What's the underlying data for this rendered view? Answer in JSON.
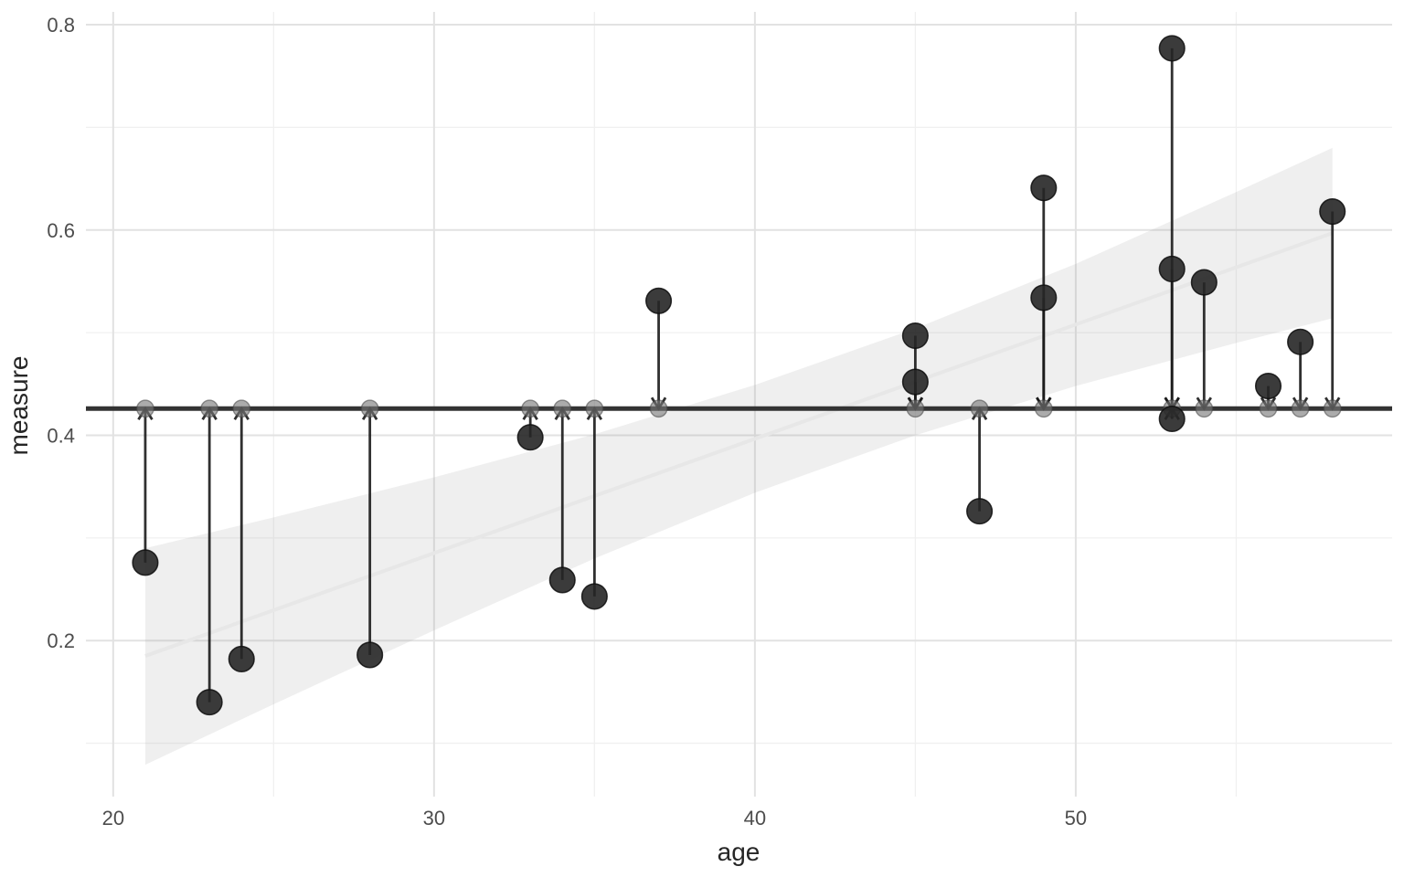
{
  "chart_data": {
    "type": "scatter",
    "title": "",
    "xlabel": "age",
    "ylabel": "measure",
    "legend": "none",
    "grid": "on",
    "xlim": [
      19.15,
      59.86
    ],
    "ylim": [
      0.048,
      0.8125
    ],
    "x_ticks": [
      20,
      30,
      40,
      50
    ],
    "x_tick_labels": [
      "20",
      "30",
      "40",
      "50"
    ],
    "x_minor_ticks": [
      25,
      35,
      45,
      55
    ],
    "y_ticks": [
      0.2,
      0.4,
      0.6,
      0.8
    ],
    "y_tick_labels": [
      "0.2",
      "0.4",
      "0.6",
      "0.8"
    ],
    "y_minor_ticks": [
      0.1,
      0.3,
      0.5,
      0.7
    ],
    "null_model_mean": 0.426,
    "points": [
      {
        "age": 21,
        "measure": 0.276
      },
      {
        "age": 23,
        "measure": 0.14
      },
      {
        "age": 24,
        "measure": 0.182
      },
      {
        "age": 28,
        "measure": 0.186
      },
      {
        "age": 33,
        "measure": 0.398
      },
      {
        "age": 34,
        "measure": 0.259
      },
      {
        "age": 35,
        "measure": 0.243
      },
      {
        "age": 37,
        "measure": 0.531
      },
      {
        "age": 45,
        "measure": 0.497
      },
      {
        "age": 45,
        "measure": 0.452
      },
      {
        "age": 47,
        "measure": 0.326
      },
      {
        "age": 49,
        "measure": 0.641
      },
      {
        "age": 49,
        "measure": 0.534
      },
      {
        "age": 53,
        "measure": 0.777
      },
      {
        "age": 53,
        "measure": 0.562
      },
      {
        "age": 53,
        "measure": 0.416
      },
      {
        "age": 54,
        "measure": 0.549
      },
      {
        "age": 56,
        "measure": 0.448
      },
      {
        "age": 57,
        "measure": 0.491
      },
      {
        "age": 58,
        "measure": 0.618
      }
    ],
    "fitted_point_ages": [
      21,
      23,
      24,
      28,
      33,
      34,
      35,
      37,
      45,
      47,
      49,
      53,
      54,
      56,
      57,
      58
    ],
    "ribbon": {
      "ages": [
        21,
        25,
        30,
        35,
        40,
        45,
        50,
        55,
        58
      ],
      "upper": [
        0.29,
        0.32,
        0.359,
        0.401,
        0.449,
        0.504,
        0.567,
        0.637,
        0.68
      ],
      "lower": [
        0.079,
        0.138,
        0.21,
        0.28,
        0.344,
        0.4,
        0.448,
        0.49,
        0.514
      ]
    },
    "trend_line": {
      "x": [
        21,
        58
      ],
      "y": [
        0.185,
        0.597
      ]
    },
    "colors": {
      "background": "#ffffff",
      "grid_major": "#e2e2e2",
      "grid_minor": "#f0f0f0",
      "ribbon_fill": "#999999",
      "trend_line": "#e7e7e7",
      "null_line": "#333333",
      "segment": "#1a1a1a",
      "data_point": "#262626",
      "fitted_point": "#777777",
      "tick_label": "#4d4d4d",
      "axis_title": "#262626"
    }
  }
}
